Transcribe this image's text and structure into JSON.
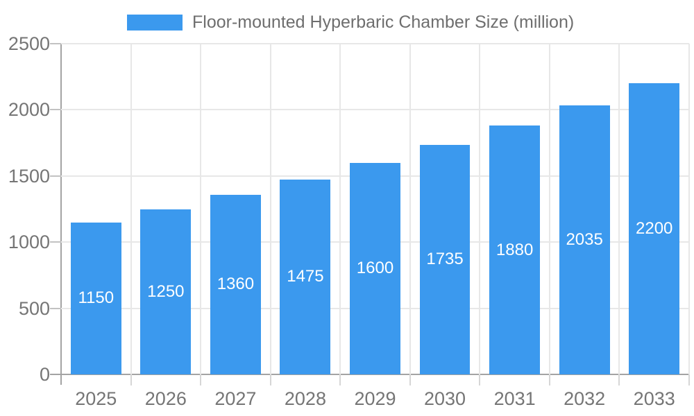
{
  "legend": {
    "label": "Floor-mounted Hyperbaric Chamber Size (million)"
  },
  "chart_data": {
    "type": "bar",
    "title": "",
    "categories": [
      "2025",
      "2026",
      "2027",
      "2028",
      "2029",
      "2030",
      "2031",
      "2032",
      "2033"
    ],
    "series": [
      {
        "name": "Floor-mounted Hyperbaric Chamber Size (million)",
        "values": [
          1150,
          1250,
          1360,
          1475,
          1600,
          1735,
          1880,
          2035,
          2200
        ]
      }
    ],
    "xlabel": "",
    "ylabel": "",
    "ylim": [
      0,
      2500
    ],
    "yticks": [
      0,
      500,
      1000,
      1500,
      2000,
      2500
    ],
    "grid": true,
    "legend_position": "top",
    "value_labels": "inside-center"
  },
  "colors": {
    "bar": "#3b99ee",
    "value_label": "#ffffff",
    "axis_line": "#a3a3a3",
    "gridline": "#e7e7e7",
    "tick_label": "#757575",
    "legend_text": "#6e6e6e",
    "background": "#ffffff"
  }
}
